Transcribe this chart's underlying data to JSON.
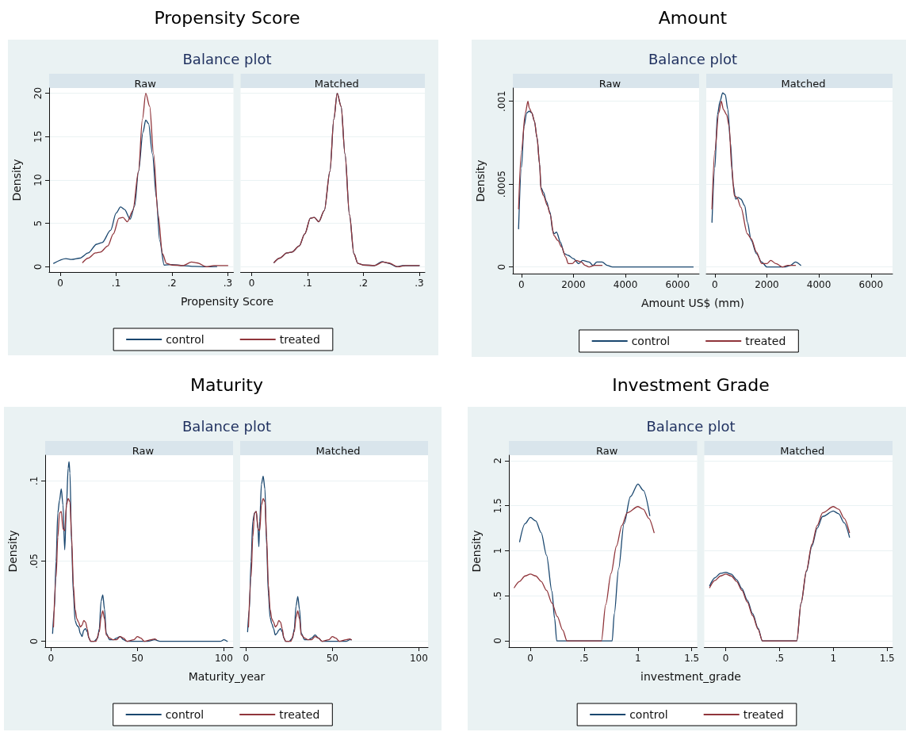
{
  "chart_data": [
    {
      "type": "line",
      "title": "Raw",
      "annotations": [
        "Propensity Score",
        "Balance plot"
      ],
      "xlabel": "Propensity Score",
      "ylabel": "Density",
      "legend": "bottom",
      "grid": "y",
      "xlim": [
        -0.02,
        0.31
      ],
      "ylim": [
        -0.6,
        20.6
      ],
      "xticks": [
        0,
        {
          "value": 0.1,
          "label": ".1"
        },
        {
          "value": 0.2,
          "label": ".2"
        },
        {
          "value": 0.3,
          "label": ".3"
        }
      ],
      "yticks": [
        0,
        5,
        10,
        15,
        20
      ],
      "series": [
        {
          "name": "control",
          "color": "#1a476f",
          "x": [
            -0.012,
            0.01,
            0.02,
            0.035,
            0.05,
            0.065,
            0.075,
            0.09,
            0.1,
            0.108,
            0.115,
            0.125,
            0.133,
            0.14,
            0.148,
            0.153,
            0.158,
            0.165,
            0.172,
            0.178,
            0.186,
            0.2,
            0.22,
            0.24,
            0.26,
            0.28
          ],
          "values": [
            0.4,
            0.95,
            0.85,
            1.0,
            1.6,
            2.6,
            2.8,
            4.2,
            6.2,
            6.9,
            6.6,
            5.5,
            7,
            11,
            15.5,
            16.9,
            16.5,
            13,
            8,
            3,
            0.2,
            0.25,
            0.15,
            0.05,
            0,
            0.02
          ]
        },
        {
          "name": "treated",
          "color": "#90353b",
          "x": [
            0.04,
            0.05,
            0.063,
            0.072,
            0.085,
            0.095,
            0.105,
            0.112,
            0.12,
            0.13,
            0.14,
            0.147,
            0.153,
            0.16,
            0.167,
            0.175,
            0.183,
            0.19,
            0.2,
            0.22,
            0.235,
            0.245,
            0.262,
            0.275,
            0.3
          ],
          "values": [
            0.5,
            1.0,
            1.6,
            1.7,
            2.4,
            3.8,
            5.6,
            5.7,
            5.2,
            6.5,
            11,
            17,
            20,
            18.5,
            13,
            6,
            1.5,
            0.4,
            0.2,
            0.15,
            0.55,
            0.45,
            0,
            0.15,
            0.15
          ]
        }
      ]
    },
    {
      "type": "line",
      "title": "Matched",
      "tick_labels": "x",
      "grid": "y",
      "xlim": [
        -0.02,
        0.31
      ],
      "ylim": [
        -0.6,
        20.6
      ],
      "xticks": [
        0,
        {
          "value": 0.1,
          "label": ".1"
        },
        {
          "value": 0.2,
          "label": ".2"
        },
        {
          "value": 0.3,
          "label": ".3"
        }
      ],
      "yticks": [
        0,
        5,
        10,
        15,
        20
      ],
      "series": [
        {
          "color": "#1a476f",
          "x": [
            0.04,
            0.05,
            0.063,
            0.072,
            0.085,
            0.095,
            0.105,
            0.112,
            0.12,
            0.13,
            0.14,
            0.147,
            0.153,
            0.16,
            0.167,
            0.175,
            0.183,
            0.19,
            0.2,
            0.22,
            0.233,
            0.245,
            0.26,
            0.27,
            0.3
          ],
          "values": [
            0.5,
            1.0,
            1.6,
            1.7,
            2.4,
            3.8,
            5.6,
            5.7,
            5.2,
            6.5,
            11,
            17,
            20,
            18.5,
            13,
            6,
            1.5,
            0.4,
            0.2,
            0.15,
            0.6,
            0.4,
            0,
            0.15,
            0.15
          ]
        },
        {
          "color": "#90353b",
          "x": [
            0.04,
            0.05,
            0.063,
            0.072,
            0.085,
            0.095,
            0.105,
            0.112,
            0.12,
            0.13,
            0.14,
            0.147,
            0.153,
            0.16,
            0.167,
            0.175,
            0.183,
            0.19,
            0.2,
            0.22,
            0.235,
            0.245,
            0.262,
            0.275,
            0.3
          ],
          "values": [
            0.5,
            1.0,
            1.6,
            1.7,
            2.4,
            3.8,
            5.6,
            5.7,
            5.2,
            6.5,
            11,
            17,
            20,
            18.5,
            13,
            6,
            1.5,
            0.4,
            0.2,
            0.15,
            0.55,
            0.45,
            0,
            0.15,
            0.15
          ]
        }
      ]
    },
    {
      "type": "line",
      "title": "Raw",
      "annotations": [
        "Amount",
        "Balance plot"
      ],
      "xlabel": "Amount US$ (mm)",
      "ylabel": "Density",
      "legend": "bottom",
      "grid": "y",
      "xlim": [
        -330,
        6830
      ],
      "ylim": [
        -4e-05,
        0.00108
      ],
      "xticks": [
        0,
        2000,
        4000,
        6000
      ],
      "yticks": [
        0,
        {
          "value": 0.0005,
          "label": ".0005"
        },
        {
          "value": 0.001,
          "label": ".001"
        }
      ],
      "series": [
        {
          "name": "control",
          "color": "#1a476f",
          "x": [
            -110,
            0,
            100,
            200,
            300,
            400,
            500,
            600,
            700,
            750,
            850,
            950,
            1100,
            1200,
            1250,
            1350,
            1500,
            1650,
            1800,
            2000,
            2200,
            2350,
            2600,
            2750,
            2900,
            3100,
            3300,
            3500,
            4000,
            5000,
            6600
          ],
          "values": [
            0.00023,
            0.0006,
            0.00085,
            0.00093,
            0.00094,
            0.00093,
            0.00088,
            0.00078,
            0.00062,
            0.00048,
            0.00045,
            0.0004,
            0.00033,
            0.00022,
            0.0002,
            0.00021,
            0.00015,
            8e-05,
            7e-05,
            5e-05,
            2e-05,
            4e-05,
            3e-05,
            1e-05,
            3e-05,
            3e-05,
            1e-05,
            0,
            0,
            0,
            0
          ]
        },
        {
          "name": "treated",
          "color": "#90353b",
          "x": [
            -110,
            0,
            150,
            250,
            300,
            400,
            500,
            600,
            700,
            750,
            850,
            1000,
            1100,
            1250,
            1400,
            1550,
            1700,
            1800,
            1950,
            2100,
            2300,
            2450,
            2600,
            2800,
            3100
          ],
          "values": [
            0.00035,
            0.0007,
            0.00093,
            0.001,
            0.00096,
            0.00093,
            0.00088,
            0.00078,
            0.00062,
            0.00047,
            0.00043,
            0.00037,
            0.00032,
            0.00019,
            0.00016,
            0.00012,
            6e-05,
            2e-05,
            2e-05,
            4e-05,
            3e-05,
            1e-05,
            0,
            1e-05,
            1e-05
          ]
        }
      ]
    },
    {
      "type": "line",
      "title": "Matched",
      "tick_labels": "x",
      "grid": "y",
      "xlim": [
        -330,
        6830
      ],
      "ylim": [
        -4e-05,
        0.00108
      ],
      "xticks": [
        0,
        2000,
        4000,
        6000
      ],
      "yticks": [
        0,
        0.0005,
        0.001
      ],
      "series": [
        {
          "color": "#1a476f",
          "x": [
            -110,
            0,
            100,
            200,
            300,
            400,
            500,
            600,
            700,
            800,
            900,
            1000,
            1150,
            1250,
            1400,
            1600,
            1800,
            2000,
            2500,
            2700,
            2900,
            3100,
            3300
          ],
          "values": [
            0.00027,
            0.0006,
            0.00092,
            0.001,
            0.00105,
            0.00104,
            0.00095,
            0.00075,
            0.0005,
            0.00041,
            0.00042,
            0.00041,
            0.00037,
            0.00027,
            0.00016,
            8e-05,
            3e-05,
            0,
            0,
            0,
            1e-05,
            3e-05,
            1e-05
          ]
        },
        {
          "color": "#90353b",
          "x": [
            -110,
            0,
            150,
            250,
            330,
            450,
            550,
            650,
            750,
            850,
            1000,
            1250,
            1400,
            1600,
            1800,
            2000,
            2150,
            2350,
            2600,
            2800,
            3100
          ],
          "values": [
            0.00035,
            0.0007,
            0.00093,
            0.001,
            0.00095,
            0.00092,
            0.00085,
            0.0006,
            0.00043,
            0.00042,
            0.00036,
            0.0002,
            0.00017,
            9e-05,
            2e-05,
            2e-05,
            4e-05,
            2e-05,
            0,
            1e-05,
            1e-05
          ]
        }
      ]
    },
    {
      "type": "line",
      "title": "Raw",
      "annotations": [
        "Maturity",
        "Balance plot"
      ],
      "xlabel": "Maturity_year",
      "ylabel": "Density",
      "legend": "bottom",
      "grid": "y",
      "xlim": [
        -3.3,
        105.3
      ],
      "ylim": [
        -0.0036,
        0.116
      ],
      "xticks": [
        0,
        50,
        100
      ],
      "yticks": [
        0,
        {
          "value": 0.05,
          "label": ".05"
        },
        {
          "value": 0.1,
          "label": ".1"
        }
      ],
      "series": [
        {
          "name": "control",
          "color": "#1a476f",
          "x": [
            1,
            2,
            3,
            4,
            5,
            6,
            7,
            8,
            9,
            10,
            10.5,
            11,
            12,
            13,
            14,
            15,
            16,
            17,
            18,
            19,
            20,
            21,
            22,
            23,
            25,
            27,
            28,
            29,
            30,
            31,
            32,
            34,
            36,
            38,
            40,
            42,
            44,
            50,
            56,
            60,
            63,
            98,
            100,
            102
          ],
          "values": [
            0.005,
            0.02,
            0.05,
            0.08,
            0.088,
            0.095,
            0.085,
            0.057,
            0.085,
            0.108,
            0.112,
            0.105,
            0.06,
            0.03,
            0.013,
            0.01,
            0.009,
            0.005,
            0.003,
            0.007,
            0.008,
            0.006,
            0.002,
            0,
            0,
            0.002,
            0.008,
            0.025,
            0.029,
            0.02,
            0.005,
            0.001,
            0.001,
            0.002,
            0.003,
            0.001,
            0,
            0,
            0,
            0.001,
            0,
            0,
            0.001,
            0
          ]
        },
        {
          "name": "treated",
          "color": "#90353b",
          "x": [
            1.5,
            3,
            4,
            5,
            6,
            7,
            8,
            9,
            10,
            11,
            12,
            13,
            14,
            15,
            16,
            17,
            18,
            19,
            20,
            21,
            22,
            23,
            26,
            28,
            29,
            30,
            31,
            32,
            34,
            36,
            38,
            40,
            42,
            44,
            48,
            50,
            52,
            54,
            58,
            60,
            61
          ],
          "values": [
            0.009,
            0.04,
            0.065,
            0.08,
            0.081,
            0.07,
            0.069,
            0.085,
            0.089,
            0.087,
            0.065,
            0.035,
            0.02,
            0.014,
            0.012,
            0.009,
            0.01,
            0.013,
            0.012,
            0.008,
            0.002,
            0,
            0,
            0.006,
            0.015,
            0.019,
            0.014,
            0.004,
            0.002,
            0.001,
            0.001,
            0.003,
            0.002,
            0,
            0.001,
            0.003,
            0.002,
            0,
            0.001,
            0.0015,
            0.001
          ]
        }
      ]
    },
    {
      "type": "line",
      "title": "Matched",
      "tick_labels": "x",
      "grid": "y",
      "xlim": [
        -3.3,
        105.3
      ],
      "ylim": [
        -0.0036,
        0.116
      ],
      "xticks": [
        0,
        50,
        100
      ],
      "yticks": [
        0,
        0.05,
        0.1
      ],
      "series": [
        {
          "color": "#1a476f",
          "x": [
            1,
            2,
            3,
            4,
            5,
            6,
            7,
            7.5,
            8,
            9,
            10,
            11,
            12,
            13,
            14,
            15,
            16,
            17,
            18,
            19,
            20,
            21,
            22,
            23,
            25,
            27,
            28,
            29,
            30,
            31,
            32,
            34,
            36,
            38,
            40,
            42,
            44,
            50,
            56,
            58,
            60,
            61
          ],
          "values": [
            0.006,
            0.02,
            0.05,
            0.075,
            0.08,
            0.081,
            0.07,
            0.059,
            0.075,
            0.098,
            0.103,
            0.095,
            0.06,
            0.03,
            0.015,
            0.011,
            0.008,
            0.004,
            0.005,
            0.007,
            0.008,
            0.006,
            0.002,
            0,
            0,
            0.002,
            0.008,
            0.022,
            0.028,
            0.02,
            0.005,
            0.001,
            0.001,
            0.002,
            0.004,
            0.002,
            0,
            0,
            0,
            0,
            0.001,
            0.001
          ]
        },
        {
          "color": "#90353b",
          "x": [
            1.5,
            3,
            4,
            5,
            6,
            7,
            8,
            9,
            10,
            11,
            12,
            13,
            14,
            15,
            16,
            17,
            18,
            19,
            20,
            21,
            22,
            23,
            26,
            28,
            29,
            30,
            31,
            32,
            34,
            36,
            38,
            40,
            42,
            44,
            48,
            50,
            52,
            54,
            58,
            60,
            61
          ],
          "values": [
            0.009,
            0.04,
            0.065,
            0.08,
            0.081,
            0.07,
            0.069,
            0.085,
            0.089,
            0.087,
            0.065,
            0.035,
            0.02,
            0.014,
            0.012,
            0.009,
            0.01,
            0.013,
            0.012,
            0.008,
            0.002,
            0,
            0,
            0.006,
            0.015,
            0.019,
            0.014,
            0.004,
            0.002,
            0.001,
            0.001,
            0.003,
            0.002,
            0,
            0.001,
            0.003,
            0.002,
            0,
            0.001,
            0.0015,
            0.001
          ]
        }
      ]
    },
    {
      "type": "line",
      "title": "Raw",
      "annotations": [
        "Investment Grade",
        "Balance plot"
      ],
      "xlabel": "investment_grade",
      "ylabel": "Density",
      "legend": "bottom",
      "grid": "y",
      "xlim": [
        -0.2,
        1.55
      ],
      "ylim": [
        -0.07,
        2.06
      ],
      "xticks": [
        0,
        {
          "value": 0.5,
          "label": ".5"
        },
        1,
        1.5
      ],
      "yticks": [
        0,
        {
          "value": 0.5,
          "label": ".5"
        },
        1,
        1.5,
        2
      ],
      "series": [
        {
          "name": "control",
          "color": "#1a476f",
          "x": [
            -0.1,
            -0.05,
            0,
            0.05,
            0.1,
            0.15,
            0.2,
            0.225,
            0.245,
            0.76,
            0.78,
            0.82,
            0.87,
            0.93,
            1,
            1.05,
            1.11
          ],
          "values": [
            1.1,
            1.3,
            1.37,
            1.33,
            1.2,
            0.95,
            0.55,
            0.25,
            0,
            0,
            0.3,
            0.8,
            1.3,
            1.6,
            1.74,
            1.67,
            1.39
          ]
        },
        {
          "name": "treated",
          "color": "#90353b",
          "x": [
            -0.15,
            -0.1,
            -0.05,
            0,
            0.05,
            0.1,
            0.15,
            0.2,
            0.25,
            0.3,
            0.34,
            0.66,
            0.7,
            0.75,
            0.8,
            0.85,
            0.9,
            1,
            1.05,
            1.1,
            1.15
          ],
          "values": [
            0.59,
            0.66,
            0.72,
            0.74,
            0.72,
            0.66,
            0.56,
            0.42,
            0.27,
            0.12,
            0,
            0,
            0.4,
            0.75,
            1.05,
            1.28,
            1.42,
            1.49,
            1.46,
            1.36,
            1.2
          ]
        }
      ]
    },
    {
      "type": "line",
      "title": "Matched",
      "tick_labels": "x",
      "grid": "y",
      "xlim": [
        -0.2,
        1.55
      ],
      "ylim": [
        -0.07,
        2.06
      ],
      "xticks": [
        0,
        {
          "value": 0.5,
          "label": ".5"
        },
        1,
        1.5
      ],
      "yticks": [
        0,
        0.5,
        1,
        1.5,
        2
      ],
      "series": [
        {
          "color": "#1a476f",
          "x": [
            -0.15,
            -0.1,
            -0.05,
            0,
            0.05,
            0.1,
            0.15,
            0.2,
            0.25,
            0.3,
            0.34,
            0.66,
            0.7,
            0.75,
            0.8,
            0.85,
            0.9,
            1,
            1.05,
            1.1,
            1.15
          ],
          "values": [
            0.61,
            0.7,
            0.75,
            0.76,
            0.74,
            0.68,
            0.58,
            0.45,
            0.3,
            0.14,
            0,
            0,
            0.42,
            0.77,
            1.05,
            1.25,
            1.38,
            1.44,
            1.41,
            1.31,
            1.15
          ]
        },
        {
          "color": "#90353b",
          "x": [
            -0.15,
            -0.1,
            -0.05,
            0,
            0.05,
            0.1,
            0.15,
            0.2,
            0.25,
            0.3,
            0.34,
            0.66,
            0.7,
            0.75,
            0.8,
            0.85,
            0.9,
            1,
            1.05,
            1.1,
            1.15
          ],
          "values": [
            0.59,
            0.67,
            0.72,
            0.74,
            0.72,
            0.66,
            0.56,
            0.43,
            0.28,
            0.13,
            0,
            0,
            0.42,
            0.78,
            1.07,
            1.28,
            1.42,
            1.49,
            1.46,
            1.36,
            1.2
          ]
        }
      ]
    }
  ]
}
